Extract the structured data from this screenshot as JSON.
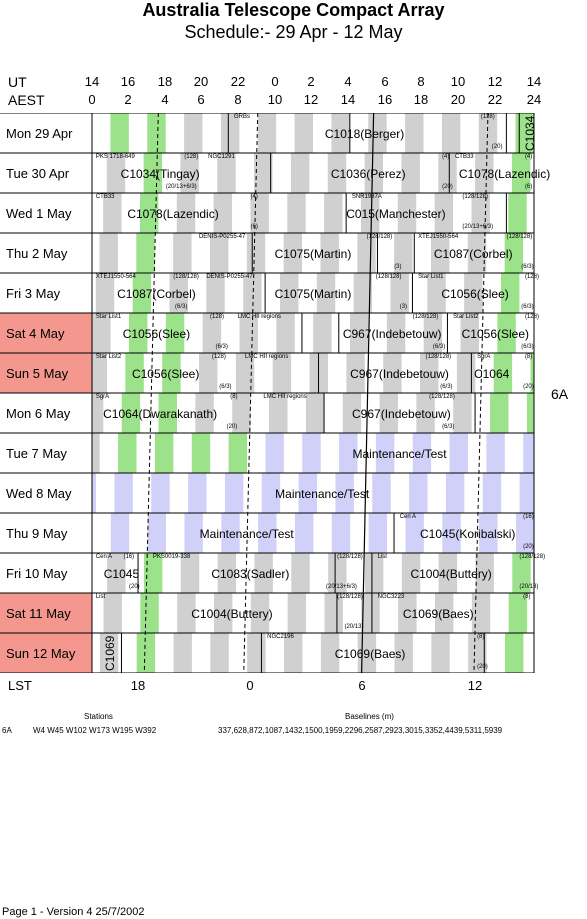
{
  "title": "Australia Telescope Compact Array",
  "subtitle": "Schedule:- 29 Apr - 12 May",
  "ut_label": "UT",
  "aest_label": "AEST",
  "lst_label": "LST",
  "ut_ticks": [
    "14",
    "16",
    "18",
    "20",
    "22",
    "0",
    "2",
    "4",
    "6",
    "8",
    "10",
    "12",
    "14"
  ],
  "aest_ticks": [
    "0",
    "2",
    "4",
    "6",
    "8",
    "10",
    "12",
    "14",
    "16",
    "18",
    "20",
    "22",
    "24"
  ],
  "lst_ticks": [
    "18",
    "0",
    "6",
    "12"
  ],
  "config": "6A",
  "days": [
    {
      "label": "Mon   29 Apr",
      "weekend": false
    },
    {
      "label": "Tue   30 Apr",
      "weekend": false
    },
    {
      "label": "Wed  1  May",
      "weekend": false
    },
    {
      "label": "Thu   2  May",
      "weekend": false
    },
    {
      "label": "Fri   3  May",
      "weekend": false
    },
    {
      "label": "Sat   4  May",
      "weekend": true
    },
    {
      "label": "Sun  5  May",
      "weekend": true
    },
    {
      "label": "Mon  6  May",
      "weekend": false
    },
    {
      "label": "Tue   7  May",
      "weekend": false
    },
    {
      "label": "Wed  8  May",
      "weekend": false
    },
    {
      "label": "Thu   9  May",
      "weekend": false
    },
    {
      "label": "Fri   10 May",
      "weekend": false
    },
    {
      "label": "Sat   11 May",
      "weekend": true
    },
    {
      "label": "Sun  12 May",
      "weekend": true
    }
  ],
  "observations": [
    {
      "row": 0,
      "text": "C1018(Berger)"
    },
    {
      "row": 1,
      "text": "C1034(Tingay)"
    },
    {
      "row": 1,
      "text": "C1036(Perez)"
    },
    {
      "row": 1,
      "text": "C1078(Lazendic)"
    },
    {
      "row": 2,
      "text": "C1078(Lazendic)"
    },
    {
      "row": 2,
      "text": "C015(Manchester)"
    },
    {
      "row": 3,
      "text": "C1075(Martin)"
    },
    {
      "row": 3,
      "text": "C1087(Corbel)"
    },
    {
      "row": 4,
      "text": "C1087(Corbel)"
    },
    {
      "row": 4,
      "text": "C1075(Martin)"
    },
    {
      "row": 4,
      "text": "C1056(Slee)"
    },
    {
      "row": 5,
      "text": "C1056(Slee)"
    },
    {
      "row": 5,
      "text": "C967(Indebetouw)"
    },
    {
      "row": 5,
      "text": "C1056(Slee)"
    },
    {
      "row": 6,
      "text": "C1056(Slee)"
    },
    {
      "row": 6,
      "text": "C967(Indebetouw)"
    },
    {
      "row": 6,
      "text": "C1064"
    },
    {
      "row": 7,
      "text": "C1064(Dwarakanath)"
    },
    {
      "row": 7,
      "text": "C967(Indebetouw)"
    },
    {
      "row": 8,
      "text": "Maintenance/Test"
    },
    {
      "row": 9,
      "text": "Maintenance/Test"
    },
    {
      "row": 10,
      "text": "Maintenance/Test"
    },
    {
      "row": 10,
      "text": "C1045(Koribalski)"
    },
    {
      "row": 11,
      "text": "C1045"
    },
    {
      "row": 11,
      "text": "C1083(Sadler)"
    },
    {
      "row": 11,
      "text": "C1004(Buttery)"
    },
    {
      "row": 12,
      "text": "C1004(Buttery)"
    },
    {
      "row": 12,
      "text": "C1069(Baes)"
    },
    {
      "row": 13,
      "text": "C1069(Baes)"
    }
  ],
  "vertical_labels": [
    "C1034",
    "C1069"
  ],
  "small_labels": [
    "GRBs",
    "(128)",
    "(20)",
    "PKS 1718-649",
    "(128)",
    "NGC1291",
    "(4)",
    "CTB33",
    "(4)",
    "(20/13+6/3)",
    "(20)",
    "(6)",
    "CTB33",
    "(4)",
    "(6)",
    "SNR1987A",
    "(128/128)",
    "(20/13+6/3)",
    "DENIS-P0255-47",
    "(128/128)",
    "(3)",
    "XTEJ1550-564",
    "(128/128)",
    "(6/3)",
    "XTEJ1550-564",
    "(128/128)",
    "(6/3)",
    "DENIS-P0255-47",
    "(128/128)",
    "(3)",
    "Star List1",
    "(128)",
    "(6/3)",
    "Star List1",
    "(128)",
    "(6/3)",
    "LMC HII regions",
    "(128/128)",
    "(6/3)",
    "Star List2",
    "(128)",
    "(6/3)",
    "Star List2",
    "(128)",
    "(6/3)",
    "LMC HII regions",
    "(128/128)",
    "(6/3)",
    "SgrA",
    "(8)",
    "(20)",
    "SgrA",
    "(8)",
    "(20)",
    "LMC HII regions",
    "(128/128)",
    "(6/3)",
    "Cen A",
    "(16)",
    "(20)",
    "Cen A",
    "(16)",
    "(20)",
    "PKS0019-338",
    "(128/128)",
    "(20/13+6/3)",
    "List",
    "(128/128)",
    "(20/13)",
    "List",
    "(128/128)",
    "(20/13)",
    "NGC3223",
    "(8)",
    "NGC2196",
    "(8)",
    "(20)"
  ],
  "footer": {
    "stations_label": "Stations",
    "baselines_label": "Baselines (m)",
    "config": "6A",
    "stations": "W4  W45  W102  W173  W195  W392",
    "baselines": "337,628,872,1087,1432,1500,1959,2296,2587,2923,3015,3352,4439,5311,5939",
    "page": "Page 1 - Version 4  25/7/2002"
  }
}
